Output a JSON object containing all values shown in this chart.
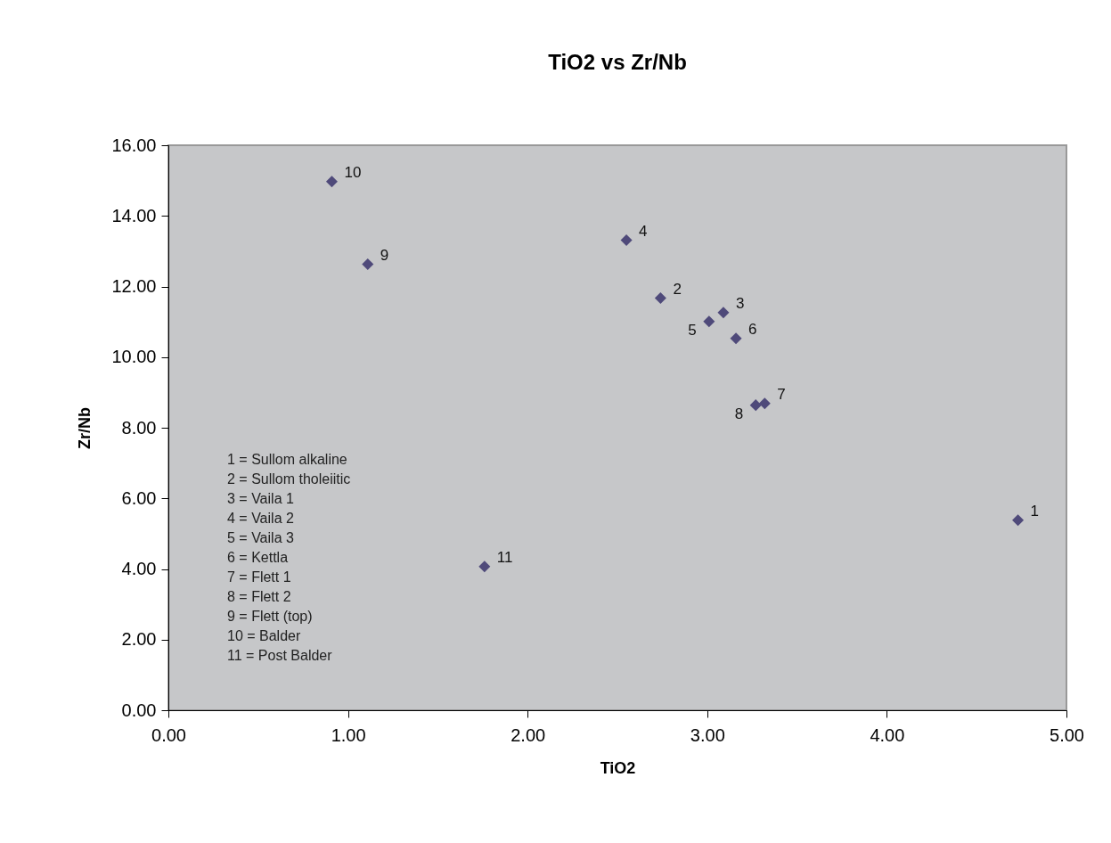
{
  "chart_data": {
    "type": "scatter",
    "title": "TiO2 vs Zr/Nb",
    "xlabel": "TiO2",
    "ylabel": "Zr/Nb",
    "series": [
      {
        "color": "#4f4a7a",
        "x": [
          4.73,
          2.74,
          3.09,
          2.55,
          3.01,
          3.16,
          3.32,
          3.27,
          1.11,
          0.91,
          1.76
        ],
        "values": [
          5.38,
          11.67,
          11.26,
          13.31,
          11.01,
          10.53,
          8.69,
          8.64,
          12.63,
          14.97,
          4.07
        ]
      }
    ],
    "marker": "diamond",
    "grid": false,
    "xlim": [
      0,
      5
    ],
    "ylim": [
      0,
      16
    ],
    "xticks": [
      {
        "value": 0,
        "label": "0.00"
      },
      {
        "value": 1,
        "label": "1.00"
      },
      {
        "value": 2,
        "label": "2.00"
      },
      {
        "value": 3,
        "label": "3.00"
      },
      {
        "value": 4,
        "label": "4.00"
      },
      {
        "value": 5,
        "label": "5.00"
      }
    ],
    "yticks": [
      {
        "value": 0,
        "label": "0.00"
      },
      {
        "value": 2,
        "label": "2.00"
      },
      {
        "value": 4,
        "label": "4.00"
      },
      {
        "value": 6,
        "label": "6.00"
      },
      {
        "value": 8,
        "label": "8.00"
      },
      {
        "value": 10,
        "label": "10.00"
      },
      {
        "value": 12,
        "label": "12.00"
      },
      {
        "value": 14,
        "label": "14.00"
      },
      {
        "value": 16,
        "label": "16.00"
      }
    ],
    "annotations": [
      {
        "text": "1",
        "x": 4.73,
        "y": 5.38
      },
      {
        "text": "2",
        "x": 2.74,
        "y": 11.67
      },
      {
        "text": "3",
        "x": 3.09,
        "y": 11.26
      },
      {
        "text": "4",
        "x": 2.55,
        "y": 13.31
      },
      {
        "text": "5",
        "x": 3.01,
        "y": 11.01
      },
      {
        "text": "6",
        "x": 3.16,
        "y": 10.53
      },
      {
        "text": "7",
        "x": 3.32,
        "y": 8.69
      },
      {
        "text": "8",
        "x": 3.27,
        "y": 8.64
      },
      {
        "text": "9",
        "x": 1.11,
        "y": 12.63
      },
      {
        "text": "10",
        "x": 0.91,
        "y": 14.97
      },
      {
        "text": "11",
        "x": 1.76,
        "y": 4.07
      },
      "1 = Sullom alkaline",
      "2 = Sullom tholeiitic",
      "3 = Vaila 1",
      "4 = Vaila 2",
      "5 = Vaila 3",
      "6 = Kettla",
      "7 = Flett 1",
      "8 = Flett 2",
      "9 = Flett (top)",
      "10 = Balder",
      "11 = Post Balder"
    ]
  }
}
